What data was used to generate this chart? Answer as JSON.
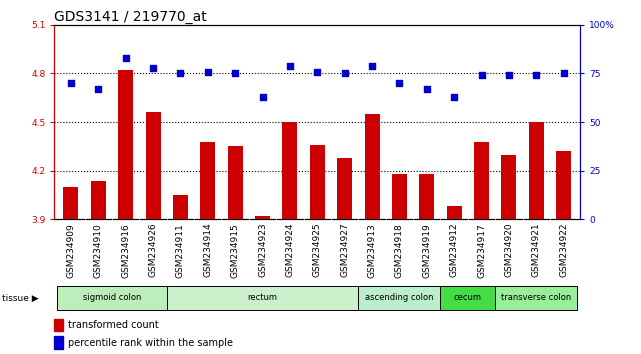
{
  "title": "GDS3141 / 219770_at",
  "samples": [
    "GSM234909",
    "GSM234910",
    "GSM234916",
    "GSM234926",
    "GSM234911",
    "GSM234914",
    "GSM234915",
    "GSM234923",
    "GSM234924",
    "GSM234925",
    "GSM234927",
    "GSM234913",
    "GSM234918",
    "GSM234919",
    "GSM234912",
    "GSM234917",
    "GSM234920",
    "GSM234921",
    "GSM234922"
  ],
  "bar_values": [
    4.1,
    4.14,
    4.82,
    4.56,
    4.05,
    4.38,
    4.35,
    3.92,
    4.5,
    4.36,
    4.28,
    4.55,
    4.18,
    4.18,
    3.98,
    4.38,
    4.3,
    4.5,
    4.32
  ],
  "dot_values": [
    70,
    67,
    83,
    78,
    75,
    76,
    75,
    63,
    79,
    76,
    75,
    79,
    70,
    67,
    63,
    74,
    74,
    74,
    75
  ],
  "ylim_left": [
    3.9,
    5.1
  ],
  "ylim_right": [
    0,
    100
  ],
  "yticks_left": [
    3.9,
    4.2,
    4.5,
    4.8,
    5.1
  ],
  "yticks_right": [
    0,
    25,
    50,
    75,
    100
  ],
  "ytick_labels_right": [
    "0",
    "25",
    "50",
    "75",
    "100%"
  ],
  "bar_color": "#cc0000",
  "dot_color": "#0000cc",
  "background_color": "#ffffff",
  "grid_color": "#000000",
  "xticklabel_bg": "#d8d8d8",
  "tissue_groups": [
    {
      "label": "sigmoid colon",
      "start": 0,
      "end": 3,
      "color": "#bbeebb"
    },
    {
      "label": "rectum",
      "start": 4,
      "end": 10,
      "color": "#ccf0cc"
    },
    {
      "label": "ascending colon",
      "start": 11,
      "end": 13,
      "color": "#bbeecc"
    },
    {
      "label": "cecum",
      "start": 14,
      "end": 15,
      "color": "#44dd44"
    },
    {
      "label": "transverse colon",
      "start": 16,
      "end": 18,
      "color": "#99ee99"
    }
  ],
  "title_fontsize": 10,
  "tick_fontsize": 6.5,
  "bar_width": 0.55,
  "dot_size": 16
}
